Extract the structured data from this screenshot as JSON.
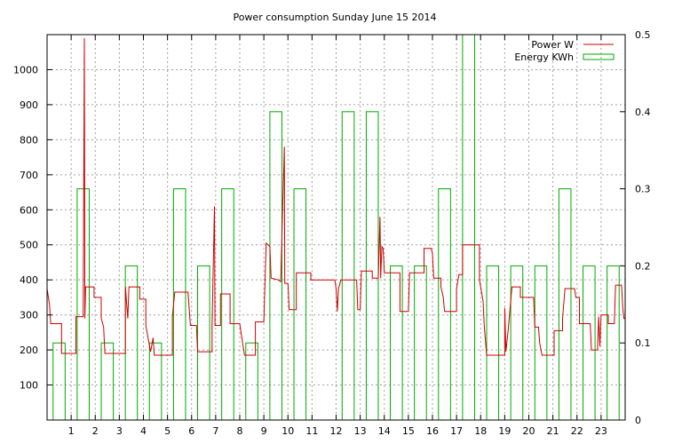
{
  "chart_data": {
    "type": "line",
    "title": "Power consumption Sunday June 15 2014",
    "xlabel": "",
    "ylabel": "",
    "xlim": [
      0,
      24
    ],
    "ylim": [
      0,
      1100
    ],
    "y2lim": [
      0,
      0.5
    ],
    "x_ticks": [
      1,
      2,
      3,
      4,
      5,
      6,
      7,
      8,
      9,
      10,
      11,
      12,
      13,
      14,
      15,
      16,
      17,
      18,
      19,
      20,
      21,
      22,
      23
    ],
    "y_ticks": [
      100,
      200,
      300,
      400,
      500,
      600,
      700,
      800,
      900,
      1000
    ],
    "y2_ticks": [
      0,
      0.1,
      0.2,
      0.3,
      0.4,
      0.5
    ],
    "grid": true,
    "legend_position": "top-right",
    "series": [
      {
        "name": "Power W",
        "axis": "left",
        "color": "#cc0000",
        "points": [
          [
            0.0,
            375
          ],
          [
            0.1,
            330
          ],
          [
            0.15,
            275
          ],
          [
            0.6,
            275
          ],
          [
            0.6,
            190
          ],
          [
            1.2,
            190
          ],
          [
            1.2,
            295
          ],
          [
            1.5,
            295
          ],
          [
            1.55,
            1090
          ],
          [
            1.57,
            290
          ],
          [
            1.6,
            380
          ],
          [
            1.95,
            380
          ],
          [
            1.95,
            350
          ],
          [
            2.25,
            350
          ],
          [
            2.25,
            290
          ],
          [
            2.35,
            265
          ],
          [
            2.4,
            190
          ],
          [
            3.25,
            190
          ],
          [
            3.25,
            380
          ],
          [
            3.35,
            290
          ],
          [
            3.4,
            380
          ],
          [
            3.85,
            380
          ],
          [
            3.85,
            345
          ],
          [
            4.1,
            345
          ],
          [
            4.1,
            270
          ],
          [
            4.3,
            195
          ],
          [
            4.4,
            235
          ],
          [
            4.45,
            185
          ],
          [
            5.2,
            185
          ],
          [
            5.2,
            295
          ],
          [
            5.3,
            365
          ],
          [
            5.85,
            365
          ],
          [
            5.95,
            270
          ],
          [
            6.2,
            270
          ],
          [
            6.25,
            195
          ],
          [
            6.85,
            195
          ],
          [
            6.85,
            270
          ],
          [
            6.95,
            610
          ],
          [
            6.97,
            270
          ],
          [
            7.2,
            270
          ],
          [
            7.2,
            360
          ],
          [
            7.6,
            360
          ],
          [
            7.6,
            275
          ],
          [
            8.0,
            275
          ],
          [
            8.05,
            250
          ],
          [
            8.2,
            185
          ],
          [
            8.65,
            185
          ],
          [
            8.65,
            280
          ],
          [
            9.0,
            280
          ],
          [
            9.05,
            400
          ],
          [
            9.1,
            505
          ],
          [
            9.25,
            495
          ],
          [
            9.3,
            405
          ],
          [
            9.6,
            400
          ],
          [
            9.7,
            395
          ],
          [
            9.85,
            780
          ],
          [
            9.87,
            390
          ],
          [
            10.0,
            390
          ],
          [
            10.05,
            315
          ],
          [
            10.35,
            315
          ],
          [
            10.35,
            420
          ],
          [
            10.95,
            420
          ],
          [
            10.95,
            400
          ],
          [
            11.95,
            400
          ],
          [
            12.0,
            375
          ],
          [
            12.05,
            310
          ],
          [
            12.1,
            375
          ],
          [
            12.2,
            400
          ],
          [
            12.85,
            400
          ],
          [
            12.9,
            315
          ],
          [
            13.0,
            315
          ],
          [
            13.05,
            425
          ],
          [
            13.5,
            425
          ],
          [
            13.5,
            405
          ],
          [
            13.75,
            405
          ],
          [
            13.82,
            580
          ],
          [
            13.85,
            405
          ],
          [
            13.9,
            495
          ],
          [
            13.95,
            490
          ],
          [
            14.0,
            420
          ],
          [
            14.65,
            420
          ],
          [
            14.65,
            310
          ],
          [
            15.0,
            310
          ],
          [
            15.05,
            420
          ],
          [
            15.65,
            420
          ],
          [
            15.65,
            490
          ],
          [
            15.95,
            490
          ],
          [
            16.0,
            475
          ],
          [
            16.05,
            405
          ],
          [
            16.35,
            405
          ],
          [
            16.35,
            380
          ],
          [
            16.45,
            350
          ],
          [
            16.5,
            310
          ],
          [
            17.0,
            310
          ],
          [
            17.0,
            375
          ],
          [
            17.1,
            415
          ],
          [
            17.25,
            415
          ],
          [
            17.25,
            500
          ],
          [
            17.95,
            500
          ],
          [
            17.95,
            400
          ],
          [
            18.1,
            340
          ],
          [
            18.15,
            270
          ],
          [
            18.25,
            185
          ],
          [
            19.0,
            185
          ],
          [
            19.0,
            320
          ],
          [
            19.05,
            195
          ],
          [
            19.15,
            260
          ],
          [
            19.3,
            380
          ],
          [
            19.65,
            380
          ],
          [
            19.65,
            350
          ],
          [
            20.2,
            350
          ],
          [
            20.25,
            265
          ],
          [
            20.4,
            265
          ],
          [
            20.45,
            220
          ],
          [
            20.55,
            185
          ],
          [
            21.05,
            185
          ],
          [
            21.05,
            255
          ],
          [
            21.4,
            255
          ],
          [
            21.4,
            290
          ],
          [
            21.5,
            375
          ],
          [
            21.9,
            375
          ],
          [
            21.95,
            350
          ],
          [
            22.1,
            350
          ],
          [
            22.1,
            275
          ],
          [
            22.55,
            275
          ],
          [
            22.6,
            200
          ],
          [
            22.85,
            200
          ],
          [
            22.9,
            295
          ],
          [
            22.95,
            210
          ],
          [
            23.0,
            300
          ],
          [
            23.3,
            300
          ],
          [
            23.3,
            275
          ],
          [
            23.55,
            275
          ],
          [
            23.6,
            385
          ],
          [
            23.85,
            385
          ],
          [
            23.9,
            320
          ],
          [
            23.95,
            290
          ],
          [
            24.0,
            290
          ]
        ]
      },
      {
        "name": "Energy KWh",
        "axis": "right",
        "color": "#00aa00",
        "bar_width": 0.5,
        "bars": [
          [
            0.0,
            0.1
          ],
          [
            1.0,
            0.3
          ],
          [
            2.0,
            0.1
          ],
          [
            3.0,
            0.2
          ],
          [
            4.0,
            0.1
          ],
          [
            5.0,
            0.3
          ],
          [
            6.0,
            0.2
          ],
          [
            7.0,
            0.3
          ],
          [
            8.0,
            0.1
          ],
          [
            9.0,
            0.4
          ],
          [
            10.0,
            0.3
          ],
          [
            11.0,
            0.0
          ],
          [
            12.0,
            0.4
          ],
          [
            13.0,
            0.4
          ],
          [
            14.0,
            0.2
          ],
          [
            15.0,
            0.2
          ],
          [
            16.0,
            0.3
          ],
          [
            17.0,
            0.5
          ],
          [
            18.0,
            0.2
          ],
          [
            19.0,
            0.2
          ],
          [
            20.0,
            0.2
          ],
          [
            21.0,
            0.3
          ],
          [
            22.0,
            0.2
          ],
          [
            23.0,
            0.2
          ]
        ]
      }
    ]
  }
}
